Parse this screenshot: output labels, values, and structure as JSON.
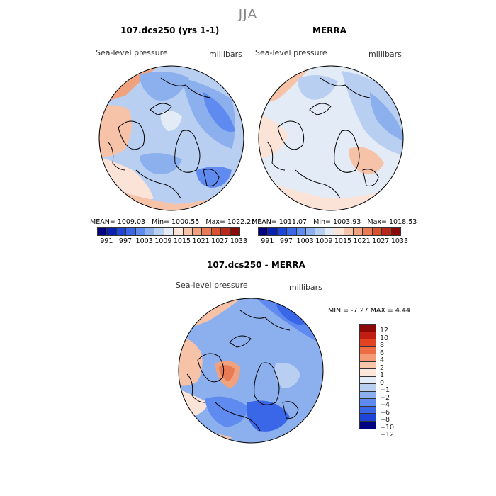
{
  "title": "JJA",
  "panels": [
    {
      "id": "model",
      "title": "107.dcs250 (yrs 1-1)",
      "variable": "Sea-level pressure",
      "units": "millibars",
      "stats": {
        "mean_label": "MEAN=",
        "mean": "1009.03",
        "min_label": "Min=",
        "min": "1000.55",
        "max_label": "Max=",
        "max": "1022.25"
      }
    },
    {
      "id": "merra",
      "title": "MERRA",
      "variable": "Sea-level pressure",
      "units": "millibars",
      "stats": {
        "mean_label": "MEAN=",
        "mean": "1011.07",
        "min_label": "Min=",
        "min": "1003.93",
        "max_label": "Max=",
        "max": "1018.53"
      }
    },
    {
      "id": "diff",
      "title": "107.dcs250 - MERRA",
      "variable": "Sea-level pressure",
      "units": "millibars",
      "stats_text": "MIN =   -7.27  MAX =    4.44"
    }
  ],
  "colorbar_abs": {
    "colors": [
      "#000080",
      "#0a20b0",
      "#1e45d8",
      "#3a66e8",
      "#5f8aef",
      "#8cafee",
      "#b8cff2",
      "#e3ecf6",
      "#fbe3d8",
      "#f6c3a9",
      "#f0a27e",
      "#e87a56",
      "#d9512e",
      "#b8291a",
      "#8b0a08"
    ],
    "tick_labels": [
      "991",
      "997",
      "1003",
      "1009",
      "1015",
      "1021",
      "1027",
      "1033"
    ]
  },
  "colorbar_diff": {
    "colors": [
      "#8b0a08",
      "#c21e12",
      "#e24322",
      "#ef6d45",
      "#f49a76",
      "#f8c4aa",
      "#fde6da",
      "#e3ecf6",
      "#b8cff2",
      "#8cafee",
      "#5f8aef",
      "#3a66e8",
      "#1e45d8",
      "#000080"
    ],
    "tick_labels": [
      "12",
      "10",
      "8",
      "6",
      "4",
      "2",
      "1",
      "0",
      "−1",
      "−2",
      "−4",
      "−6",
      "−8",
      "−10",
      "−12"
    ]
  }
}
